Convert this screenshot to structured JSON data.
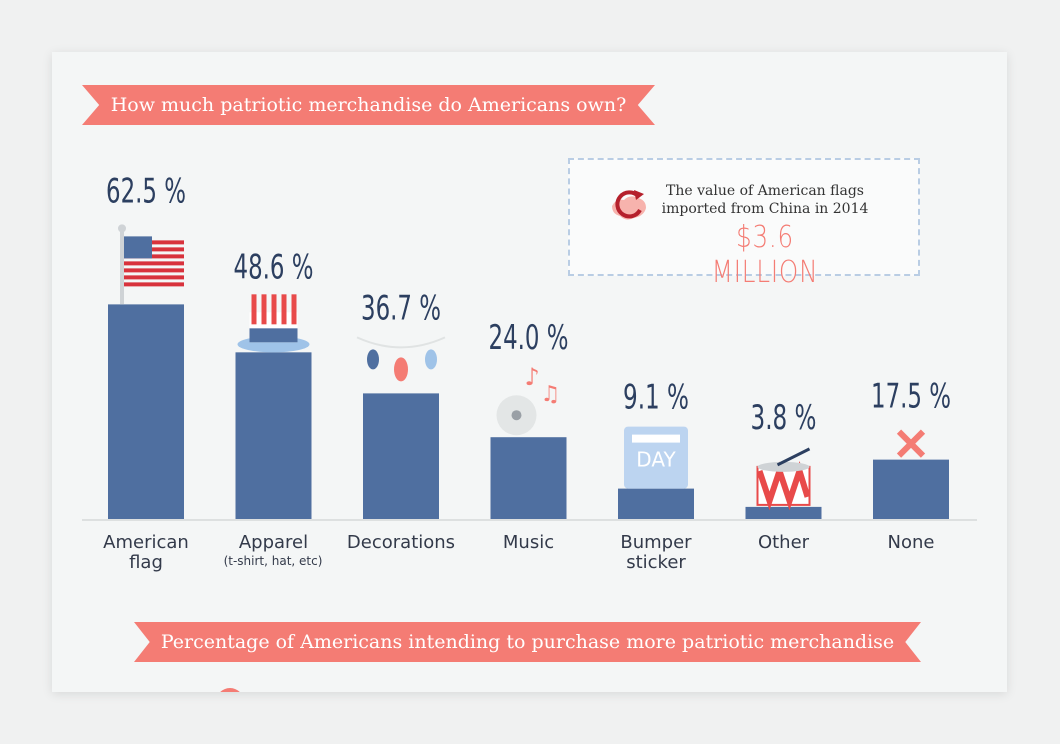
{
  "header": {
    "title": "How much patriotic merchandise do Americans own?"
  },
  "callout": {
    "text_line1": "The value of American flags",
    "text_line2": "imported from China in 2014",
    "value": "$3.6 MILLION",
    "icon": "china-map-arrow-icon"
  },
  "footer": {
    "banner": "Percentage of Americans intending to purchase more patriotic merchandise"
  },
  "x_sublabels": {
    "apparel": "(t-shirt, hat, etc)"
  },
  "chart_data": {
    "type": "bar",
    "title": "How much patriotic merchandise do Americans own?",
    "categories": [
      "American flag",
      "Apparel",
      "Decorations",
      "Music",
      "Bumper sticker",
      "Other",
      "None"
    ],
    "category_lines": [
      [
        "American",
        "flag"
      ],
      [
        "Apparel"
      ],
      [
        "Decorations"
      ],
      [
        "Music"
      ],
      [
        "Bumper",
        "sticker"
      ],
      [
        "Other"
      ],
      [
        "None"
      ]
    ],
    "values": [
      62.5,
      48.6,
      36.7,
      24.0,
      9.1,
      3.8,
      17.5
    ],
    "value_labels": [
      "62.5 %",
      "48.6 %",
      "36.7 %",
      "24.0 %",
      "9.1 %",
      "3.8 %",
      "17.5 %"
    ],
    "icons": [
      "american-flag-icon",
      "uncle-sam-hat-icon",
      "string-lights-icon",
      "music-notes-cd-icon",
      "independence-day-sticker-icon",
      "drum-icon",
      "x-mark-icon"
    ],
    "ylim": [
      0,
      70
    ],
    "grid": false,
    "bar_color": "#4f6fa0",
    "accent_color": "#f47c74"
  }
}
